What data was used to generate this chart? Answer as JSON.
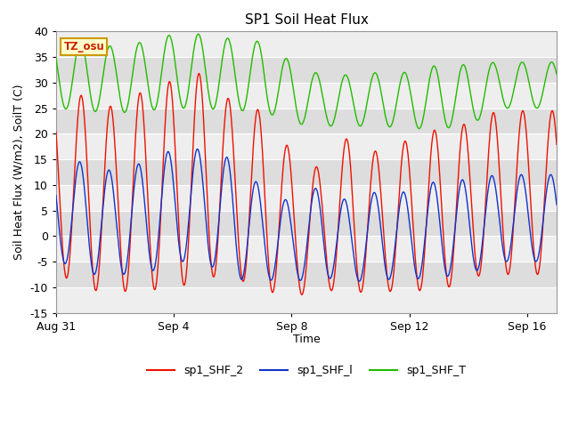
{
  "title": "SP1 Soil Heat Flux",
  "xlabel": "Time",
  "ylabel": "Soil Heat Flux (W/m2), SoilT (C)",
  "ylim": [
    -15,
    40
  ],
  "xlim_days": [
    0,
    17
  ],
  "x_ticks_days": [
    0,
    4,
    8,
    12,
    16
  ],
  "x_tick_labels": [
    "Aug 31",
    "Sep 4",
    "Sep 8",
    "Sep 12",
    "Sep 16"
  ],
  "y_ticks": [
    -15,
    -10,
    -5,
    0,
    5,
    10,
    15,
    20,
    25,
    30,
    35,
    40
  ],
  "color_red": "#ee1100",
  "color_blue": "#1133cc",
  "color_green": "#22bb00",
  "tz_label": "TZ_osu",
  "tz_bg": "#ffffcc",
  "tz_border": "#cc9900",
  "legend_labels": [
    "sp1_SHF_2",
    "sp1_SHF_l",
    "sp1_SHF_T"
  ],
  "bg_band_color": "#dddddd",
  "plot_bg": "#eeeeee",
  "total_days": 17,
  "num_points": 3400,
  "shf2_peaks": [
    27.5,
    27.5,
    25.0,
    28.5,
    30.5,
    32.0,
    26.0,
    24.5,
    16.5,
    13.0,
    20.0,
    16.0,
    19.0,
    21.0,
    22.0,
    24.5,
    24.5
  ],
  "shf2_troughs": [
    -7.0,
    -10.5,
    -11.0,
    -10.5,
    -10.5,
    -8.0,
    -8.0,
    -10.5,
    -12.0,
    -10.5,
    -11.0,
    -11.0,
    -10.5,
    -11.0,
    -8.0,
    -7.5,
    -7.5
  ],
  "shf1_peaks": [
    14.5,
    14.5,
    12.5,
    14.5,
    17.0,
    17.0,
    15.0,
    9.5,
    6.5,
    10.0,
    6.5,
    9.0,
    8.5,
    11.0,
    11.0,
    12.0,
    12.0
  ],
  "shf1_troughs": [
    -4.5,
    -7.5,
    -7.5,
    -7.5,
    -5.0,
    -5.0,
    -8.5,
    -8.5,
    -9.0,
    -8.0,
    -9.0,
    -8.5,
    -8.5,
    -8.0,
    -7.5,
    -5.0,
    -5.0
  ],
  "shft_peaks": [
    38.0,
    38.0,
    37.0,
    38.0,
    39.5,
    39.5,
    38.5,
    38.0,
    34.0,
    31.5,
    31.5,
    32.0,
    32.0,
    33.5,
    33.5,
    34.0,
    34.0
  ],
  "shft_troughs": [
    25.0,
    24.5,
    24.0,
    24.5,
    25.0,
    25.0,
    24.5,
    24.5,
    22.0,
    21.5,
    21.5,
    21.5,
    21.0,
    21.0,
    21.5,
    25.0,
    25.0
  ],
  "figsize": [
    6.4,
    4.8
  ],
  "dpi": 100
}
